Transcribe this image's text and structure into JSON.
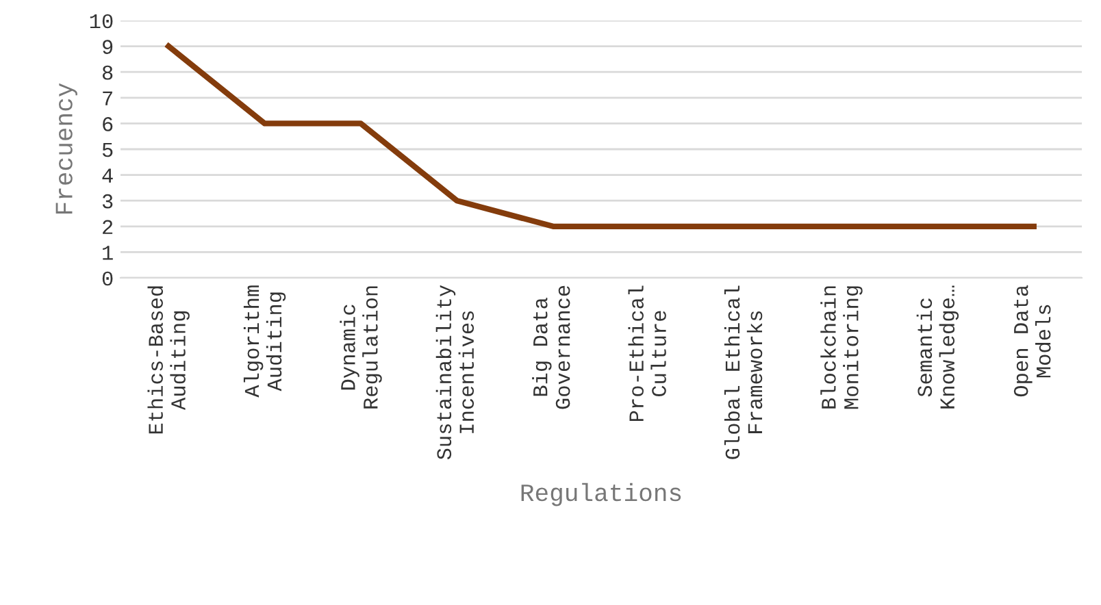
{
  "chart_data": {
    "type": "line",
    "xlabel": "Regulations",
    "ylabel": "Frecuency",
    "categories": [
      "Ethics-Based\nAuditing",
      "Algorithm\nAuditing",
      "Dynamic\nRegulation",
      "Sustainability\nIncentives",
      "Big Data\nGovernance",
      "Pro-Ethical\nCulture",
      "Global Ethical\nFrameworks",
      "Blockchain\nMonitoring",
      "Semantic\nKnowledge…",
      "Open Data\nModels"
    ],
    "series": [
      {
        "color": "#843c0c",
        "values": [
          9,
          6,
          6,
          3,
          2,
          2,
          2,
          2,
          2,
          2
        ]
      }
    ],
    "ylim": [
      0,
      10
    ],
    "yticks": [
      0,
      1,
      2,
      3,
      4,
      5,
      6,
      7,
      8,
      9,
      10
    ],
    "grid": "y",
    "legend": false,
    "marker": "none",
    "line_style": "solid"
  }
}
